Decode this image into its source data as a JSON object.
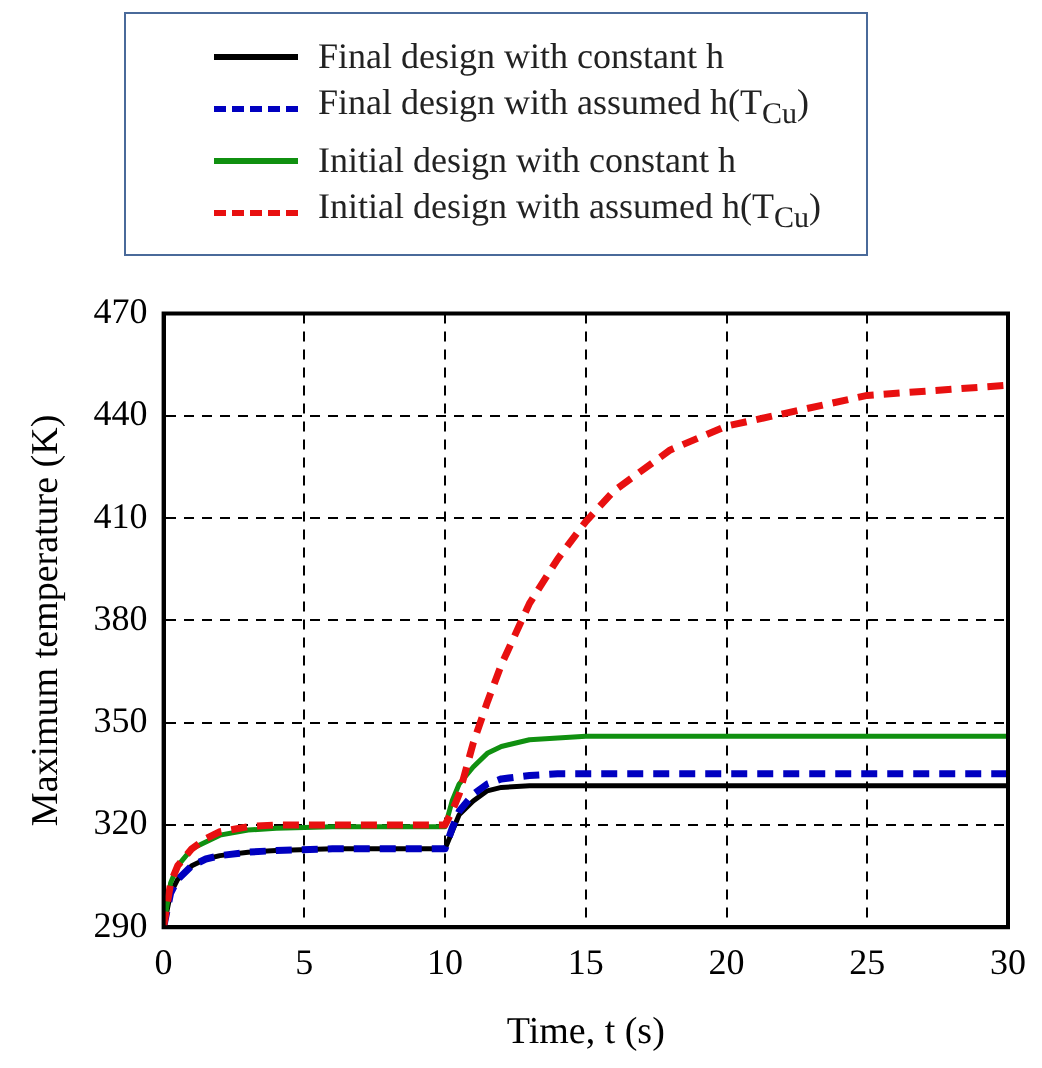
{
  "chart_data": {
    "type": "line",
    "xlabel": "Time, t (s)",
    "ylabel": "Maximum temperature (K)",
    "x": [
      0,
      0.25,
      0.5,
      1,
      1.5,
      2,
      3,
      4,
      6,
      8,
      10,
      10.25,
      10.5,
      11,
      11.5,
      12,
      13,
      14,
      15,
      16,
      18,
      20,
      25,
      30
    ],
    "series": [
      {
        "name": "Final design with constant h",
        "color": "#000000",
        "line_style": "solid",
        "values": [
          290,
          300,
          304,
          308,
          310,
          311,
          312,
          312.5,
          313,
          313,
          313,
          318,
          323,
          327,
          330,
          331,
          331.5,
          331.5,
          331.5,
          331.5,
          331.5,
          331.5,
          331.5,
          331.5
        ]
      },
      {
        "name": "Final design with assumed h(T$_{Cu}$)",
        "color": "#0000c0",
        "line_style": "dashed",
        "values": [
          290,
          300,
          304,
          308,
          310,
          311,
          312,
          312.5,
          313,
          313,
          313,
          319,
          324,
          329,
          332,
          333.5,
          334.5,
          335,
          335,
          335,
          335,
          335,
          335,
          335
        ]
      },
      {
        "name": "Initial design with constant h",
        "color": "#109010",
        "line_style": "solid",
        "values": [
          290,
          303,
          308,
          313,
          315,
          317,
          318.5,
          319,
          319.5,
          319.5,
          319.5,
          327,
          332,
          337,
          341,
          343,
          345,
          345.5,
          346,
          346,
          346,
          346,
          346,
          346
        ]
      },
      {
        "name": "Initial design with assumed h(T$_{Cu}$)",
        "color": "#e81010",
        "line_style": "dashed",
        "values": [
          290,
          303,
          308,
          313,
          316,
          318,
          319.5,
          320,
          320,
          320,
          320,
          324,
          329,
          344,
          356,
          367,
          385,
          398,
          409,
          418,
          430,
          437,
          446,
          449
        ]
      }
    ],
    "xlim": [
      0,
      30
    ],
    "xticks": [
      0,
      5,
      10,
      15,
      20,
      25,
      30
    ],
    "ylim": [
      290,
      470
    ],
    "yticks": [
      290,
      320,
      350,
      380,
      410,
      440,
      470
    ],
    "grid": true,
    "legend": "top",
    "marker": "none"
  }
}
